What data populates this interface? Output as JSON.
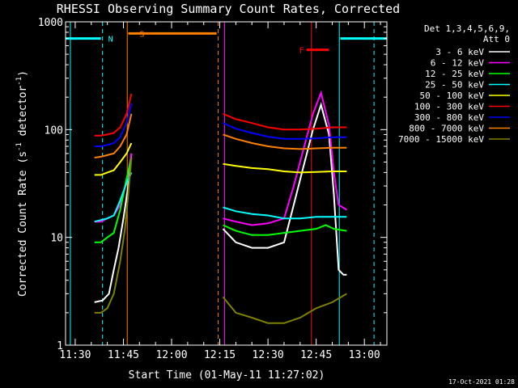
{
  "chart_data": {
    "type": "line",
    "title": "RHESSI Observing Summary Count Rates, Corrected",
    "xlabel": "Start Time (01-May-11 11:27:02)",
    "ylabel": "Corrected Count Rate (s⁻¹ detector⁻¹)",
    "ylabel_parts": [
      "Corrected Count Rate (s",
      "-1",
      " detector",
      "-1",
      ")"
    ],
    "yscale": "log",
    "ylim": [
      1,
      1000
    ],
    "xlim": [
      27,
      127
    ],
    "x_units": "minutes after 11:00 UT",
    "x_ticks": [
      {
        "v": 30,
        "label": "11:30"
      },
      {
        "v": 45,
        "label": "11:45"
      },
      {
        "v": 60,
        "label": "12:00"
      },
      {
        "v": 75,
        "label": "12:15"
      },
      {
        "v": 90,
        "label": "12:30"
      },
      {
        "v": 105,
        "label": "12:45"
      },
      {
        "v": 120,
        "label": "13:00"
      }
    ],
    "y_ticks": [
      {
        "v": 1,
        "label": "1"
      },
      {
        "v": 10,
        "label": "10"
      },
      {
        "v": 100,
        "label": "100"
      },
      {
        "v": 1000,
        "label": "1000"
      }
    ],
    "legend_title": [
      "Det 1,3,4,5,6,9,",
      "Att 0"
    ],
    "legend_placement": "right",
    "timestamp": "17-Oct-2021 01:28",
    "flags": [
      {
        "label": "N",
        "color": "#00ffff",
        "level": 700,
        "segments": [
          [
            27,
            38
          ],
          [
            112.5,
            127
          ]
        ],
        "lines": [
          [
            38.5,
            "dashed"
          ],
          [
            112.2,
            "solid"
          ],
          [
            123,
            "dashed"
          ]
        ]
      },
      {
        "label": "S",
        "color": "#ff8000",
        "level": 780,
        "segments": [
          [
            46.5,
            74
          ]
        ],
        "lines": [
          [
            46.2,
            "solid"
          ],
          [
            74.5,
            "dashed"
          ]
        ]
      },
      {
        "label": "F",
        "color": "#ff0000",
        "level": 550,
        "segments": [
          [
            102,
            109
          ]
        ],
        "lines": [
          [
            103.5,
            "solid"
          ]
        ]
      }
    ],
    "extra_lines": [
      {
        "x": 28.5,
        "color": "#00ffff",
        "style": "solid"
      },
      {
        "x": 76.5,
        "color": "#ff00ff",
        "style": "solid"
      }
    ],
    "series": [
      {
        "name": "3 - 6 keV",
        "color": "#ffffff",
        "segments": [
          {
            "points": [
              [
                36.0,
                2.5
              ],
              [
                38.5,
                2.6
              ],
              [
                40.5,
                3.0
              ],
              [
                42.0,
                5.0
              ],
              [
                43.5,
                8.0
              ],
              [
                45.0,
                15.0
              ],
              [
                46.5,
                30.0
              ],
              [
                47.5,
                60.0
              ]
            ]
          },
          {
            "points": [
              [
                76.0,
                12.0
              ],
              [
                80.0,
                9.0
              ],
              [
                85.0,
                8.0
              ],
              [
                90.0,
                8.0
              ],
              [
                95.0,
                9.0
              ],
              [
                98.0,
                20.0
              ],
              [
                101.0,
                45.0
              ],
              [
                104.0,
                100.0
              ],
              [
                106.5,
                170.0
              ],
              [
                109.0,
                90.0
              ],
              [
                110.5,
                25.0
              ],
              [
                112.0,
                5.0
              ],
              [
                113.5,
                4.5
              ],
              [
                114.5,
                4.5
              ]
            ]
          }
        ]
      },
      {
        "name": "6 - 12 keV",
        "color": "#ff00ff",
        "segments": [
          {
            "points": [
              [
                36.0,
                14.0
              ],
              [
                38.0,
                14.0
              ],
              [
                40.0,
                15.0
              ],
              [
                42.0,
                16.0
              ],
              [
                44.0,
                20.0
              ],
              [
                46.0,
                33.0
              ],
              [
                47.5,
                60.0
              ]
            ]
          },
          {
            "points": [
              [
                76.0,
                15.0
              ],
              [
                80.0,
                14.0
              ],
              [
                85.0,
                13.0
              ],
              [
                90.0,
                13.5
              ],
              [
                95.0,
                15.0
              ],
              [
                98.0,
                30.0
              ],
              [
                101.0,
                65.0
              ],
              [
                104.0,
                140.0
              ],
              [
                106.5,
                220.0
              ],
              [
                109.0,
                110.0
              ],
              [
                110.5,
                40.0
              ],
              [
                112.0,
                20.0
              ],
              [
                114.5,
                18.0
              ]
            ]
          }
        ]
      },
      {
        "name": "12 - 25 keV",
        "color": "#00ff00",
        "segments": [
          {
            "points": [
              [
                36.0,
                9.0
              ],
              [
                38.0,
                9.0
              ],
              [
                40.0,
                10.0
              ],
              [
                42.0,
                11.0
              ],
              [
                44.0,
                18.0
              ],
              [
                46.0,
                35.0
              ],
              [
                47.5,
                55.0
              ]
            ]
          },
          {
            "points": [
              [
                76.0,
                13.0
              ],
              [
                80.0,
                11.5
              ],
              [
                85.0,
                10.5
              ],
              [
                90.0,
                10.5
              ],
              [
                95.0,
                11.0
              ],
              [
                100.0,
                11.5
              ],
              [
                105.0,
                12.0
              ],
              [
                108.0,
                13.0
              ],
              [
                110.5,
                12.0
              ],
              [
                114.5,
                11.5
              ]
            ]
          }
        ]
      },
      {
        "name": "25 - 50 keV",
        "color": "#00ffff",
        "segments": [
          {
            "points": [
              [
                36.0,
                14.0
              ],
              [
                38.0,
                14.5
              ],
              [
                40.0,
                15.0
              ],
              [
                42.0,
                16.0
              ],
              [
                44.0,
                22.0
              ],
              [
                46.0,
                32.0
              ],
              [
                47.5,
                40.0
              ]
            ]
          },
          {
            "points": [
              [
                76.0,
                19.0
              ],
              [
                80.0,
                17.5
              ],
              [
                85.0,
                16.5
              ],
              [
                90.0,
                16.0
              ],
              [
                95.0,
                15.0
              ],
              [
                100.0,
                15.0
              ],
              [
                105.0,
                15.5
              ],
              [
                110.0,
                15.5
              ],
              [
                114.5,
                15.5
              ]
            ]
          }
        ]
      },
      {
        "name": "50 - 100 keV",
        "color": "#ffff00",
        "segments": [
          {
            "points": [
              [
                36.0,
                38.0
              ],
              [
                38.0,
                38.0
              ],
              [
                40.0,
                40.0
              ],
              [
                42.0,
                42.0
              ],
              [
                44.0,
                50.0
              ],
              [
                46.0,
                60.0
              ],
              [
                47.5,
                75.0
              ]
            ]
          },
          {
            "points": [
              [
                76.0,
                48.0
              ],
              [
                80.0,
                46.0
              ],
              [
                85.0,
                44.0
              ],
              [
                90.0,
                43.0
              ],
              [
                95.0,
                41.0
              ],
              [
                100.0,
                40.0
              ],
              [
                105.0,
                40.5
              ],
              [
                110.0,
                41.0
              ],
              [
                114.5,
                41.0
              ]
            ]
          }
        ]
      },
      {
        "name": "100 - 300 keV",
        "color": "#ff0000",
        "segments": [
          {
            "points": [
              [
                36.0,
                88.0
              ],
              [
                38.0,
                88.0
              ],
              [
                40.0,
                90.0
              ],
              [
                42.0,
                93.0
              ],
              [
                44.0,
                105.0
              ],
              [
                46.0,
                140.0
              ],
              [
                47.5,
                215.0
              ]
            ]
          },
          {
            "points": [
              [
                76.0,
                140.0
              ],
              [
                80.0,
                125.0
              ],
              [
                85.0,
                115.0
              ],
              [
                90.0,
                105.0
              ],
              [
                95.0,
                100.0
              ],
              [
                100.0,
                100.0
              ],
              [
                105.0,
                102.0
              ],
              [
                110.0,
                105.0
              ],
              [
                114.5,
                105.0
              ]
            ]
          }
        ]
      },
      {
        "name": "300 - 800 keV",
        "color": "#0000ff",
        "segments": [
          {
            "points": [
              [
                36.0,
                70.0
              ],
              [
                38.0,
                70.0
              ],
              [
                40.0,
                72.0
              ],
              [
                42.0,
                75.0
              ],
              [
                44.0,
                85.0
              ],
              [
                46.0,
                115.0
              ],
              [
                47.5,
                175.0
              ]
            ]
          },
          {
            "points": [
              [
                76.0,
                115.0
              ],
              [
                80.0,
                102.0
              ],
              [
                85.0,
                93.0
              ],
              [
                90.0,
                86.0
              ],
              [
                95.0,
                82.0
              ],
              [
                100.0,
                82.0
              ],
              [
                105.0,
                83.0
              ],
              [
                110.0,
                85.0
              ],
              [
                114.5,
                85.0
              ]
            ]
          }
        ]
      },
      {
        "name": "800 - 7000 keV",
        "color": "#ff8000",
        "segments": [
          {
            "points": [
              [
                36.0,
                55.0
              ],
              [
                38.0,
                56.0
              ],
              [
                40.0,
                58.0
              ],
              [
                42.0,
                60.0
              ],
              [
                44.0,
                70.0
              ],
              [
                46.0,
                90.0
              ],
              [
                47.5,
                140.0
              ]
            ]
          },
          {
            "points": [
              [
                76.0,
                90.0
              ],
              [
                80.0,
                82.0
              ],
              [
                85.0,
                75.0
              ],
              [
                90.0,
                70.0
              ],
              [
                95.0,
                67.0
              ],
              [
                100.0,
                66.0
              ],
              [
                105.0,
                67.0
              ],
              [
                110.0,
                68.0
              ],
              [
                114.5,
                68.0
              ]
            ]
          }
        ]
      },
      {
        "name": "7000 - 15000 keV",
        "color": "#808000",
        "segments": [
          {
            "points": [
              [
                36.0,
                2.0
              ],
              [
                38.0,
                2.0
              ],
              [
                40.0,
                2.2
              ],
              [
                42.0,
                3.0
              ],
              [
                44.0,
                6.0
              ],
              [
                45.5,
                12.0
              ],
              [
                46.5,
                25.0
              ],
              [
                47.5,
                55.0
              ]
            ]
          },
          {
            "points": [
              [
                76.0,
                2.8
              ],
              [
                80.0,
                2.0
              ],
              [
                85.0,
                1.8
              ],
              [
                90.0,
                1.6
              ],
              [
                95.0,
                1.6
              ],
              [
                100.0,
                1.8
              ],
              [
                105.0,
                2.2
              ],
              [
                110.0,
                2.5
              ],
              [
                114.5,
                3.0
              ]
            ]
          }
        ]
      }
    ]
  }
}
